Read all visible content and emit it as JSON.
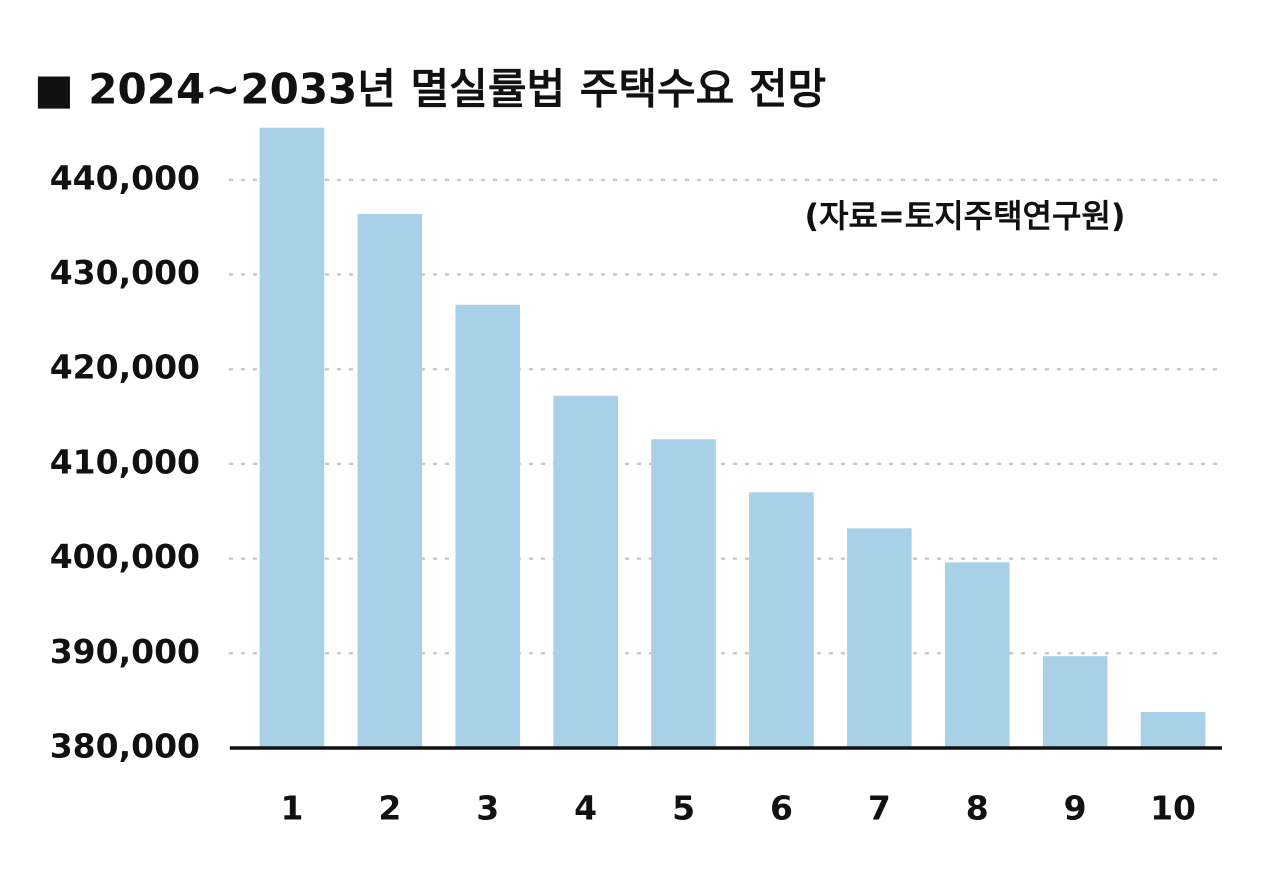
{
  "chart_data": {
    "type": "bar",
    "title": "■ 2024~2033년 멸실률법 주택수요 전망",
    "annotation": "(자료=토지주택연구원)",
    "categories": [
      "1",
      "2",
      "3",
      "4",
      "5",
      "6",
      "7",
      "8",
      "9",
      "10"
    ],
    "values": [
      445500,
      436400,
      426800,
      417200,
      412600,
      407000,
      403200,
      399600,
      389700,
      383800
    ],
    "color": "#a8d1e8",
    "ylim": [
      380000,
      446000
    ],
    "yticks": [
      {
        "value": 380000,
        "label": "380,000"
      },
      {
        "value": 390000,
        "label": "390,000"
      },
      {
        "value": 400000,
        "label": "400,000"
      },
      {
        "value": 410000,
        "label": "410,000"
      },
      {
        "value": 420000,
        "label": "420,000"
      },
      {
        "value": 430000,
        "label": "430,000"
      },
      {
        "value": 440000,
        "label": "440,000"
      }
    ],
    "grid": true
  }
}
